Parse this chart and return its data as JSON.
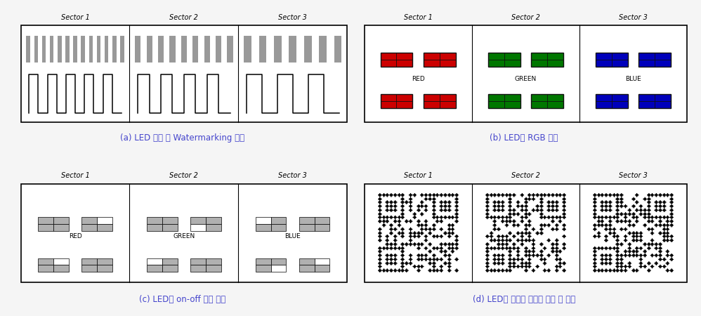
{
  "caption_a": "(a) LED 통신 및 Watermarking 이용",
  "caption_b": "(b) LED의 RGB 이용",
  "caption_c": "(c) LED의 on-off 패턴 이용",
  "caption_d": "(d) LED를 이용한 새로운 구조 및 형태",
  "caption_color": "#4444cc",
  "sector_labels": [
    "Sector 1",
    "Sector 2",
    "Sector 3"
  ],
  "rgb_colors": [
    "#cc0000",
    "#007700",
    "#0000bb"
  ],
  "rgb_labels": [
    "RED",
    "GREEN",
    "BLUE"
  ],
  "bg_color": "#f5f5f5"
}
